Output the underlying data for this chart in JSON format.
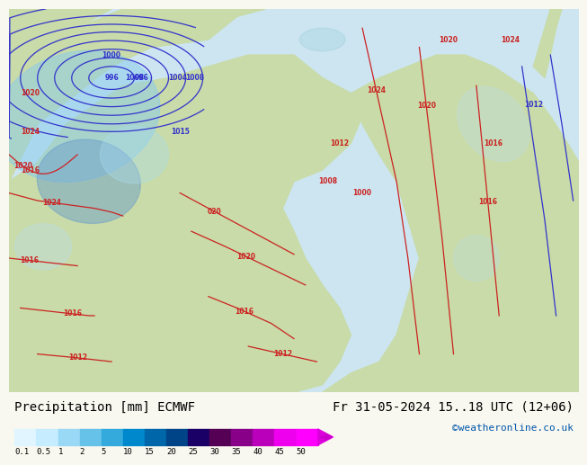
{
  "title_left": "Precipitation [mm] ECMWF",
  "title_right": "Fr 31-05-2024 15..18 UTC (12+06)",
  "credit": "©weatheronline.co.uk",
  "colorbar_levels": [
    0.1,
    0.5,
    1,
    2,
    5,
    10,
    15,
    20,
    25,
    30,
    35,
    40,
    45,
    50
  ],
  "colorbar_colors": [
    "#e0f5ff",
    "#c6ecff",
    "#99d9f5",
    "#66c2e8",
    "#33aadb",
    "#0088cc",
    "#0066aa",
    "#004488",
    "#1a0066",
    "#550055",
    "#880088",
    "#bb00bb",
    "#ee00ee",
    "#ff00ff"
  ],
  "bg_color": "#f0f0e8",
  "map_bg": "#d4e8c8",
  "sea_color": "#d0e8f0",
  "title_fontsize": 10,
  "credit_fontsize": 8,
  "label_fontsize": 8
}
